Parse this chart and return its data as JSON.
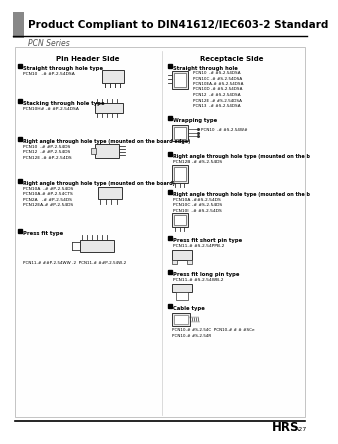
{
  "title": "Product Compliant to DIN41612/IEC603-2 Standard",
  "subtitle": "PCN Series",
  "bg_color": "#ffffff",
  "pin_header_title": "Pin Header Side",
  "receptacle_title": "Receptacle Side",
  "footer_text": "HRS",
  "footer_page": "A27",
  "pin_sections": [
    {
      "label": "Straight through hole type",
      "items": [
        "PCN10   -# #P-2.54DSA"
      ]
    },
    {
      "label": "Stacking through hole type",
      "items": [
        "PCN10H# -# #P-2.54DSA"
      ]
    },
    {
      "label": "Right angle through hole type (mounted on the board edge)",
      "items": [
        "PCN10  -# #P-2.54DS",
        "PCN12  -# #P-2.54DS",
        "PCN12E -# #P-2.54DS"
      ]
    },
    {
      "label": "Right angle through hole type (mounted on the board)",
      "items": [
        "PCN10A  -# #P-2.54DS",
        "PCN10A-# #P-2.54CTS",
        "PCN2A   -# #P-2.54DS",
        "PCN12EA-# #P-2.54DS"
      ]
    },
    {
      "label": "Press fit type",
      "items": [
        "PCN11-# ##P-2.54WW -2  PCN11-# ##P-2.54W-2"
      ]
    }
  ],
  "rec_sections": [
    {
      "label": "Straight through hole",
      "items": [
        "PCN10  -# #S-2.54DSA",
        "PCN10C -# #S-2.54DSA",
        "PCN10EA-# #S-2.54DSA",
        "PCN10D -# #S-2.54DSA",
        "PCN12  -# #S-2.54DSA",
        "PCN12E -# #S-2.54DSA",
        "PCN13  -# #S-2.54DSA"
      ]
    },
    {
      "label": "Wrapping type",
      "items": [
        "PCN10  -# #S-2.54W#"
      ]
    },
    {
      "label": "Right angle through hole type (mounted on the board edge)",
      "items": [
        "PCN12B -# #S-2.54DS"
      ]
    },
    {
      "label": "Right angle through hole type (mounted on the board)",
      "items": [
        "PCN10A -##S-2.54DS",
        "PCN10C -# #S-2.54DS",
        "PCN10I  -# #S-2.54DS"
      ]
    },
    {
      "label": "Press fit short pin type",
      "items": [
        "PCN11-# #S-2.54PPB-2"
      ]
    },
    {
      "label": "Press fit long pin type",
      "items": [
        "PCN11-# #S-2.54WB-2"
      ]
    },
    {
      "label": "Cable type",
      "items": [
        "PCN10-# #S-2.54C  PCN10-# # # #SCe",
        "PCN10-# #S-2.54R"
      ]
    }
  ]
}
